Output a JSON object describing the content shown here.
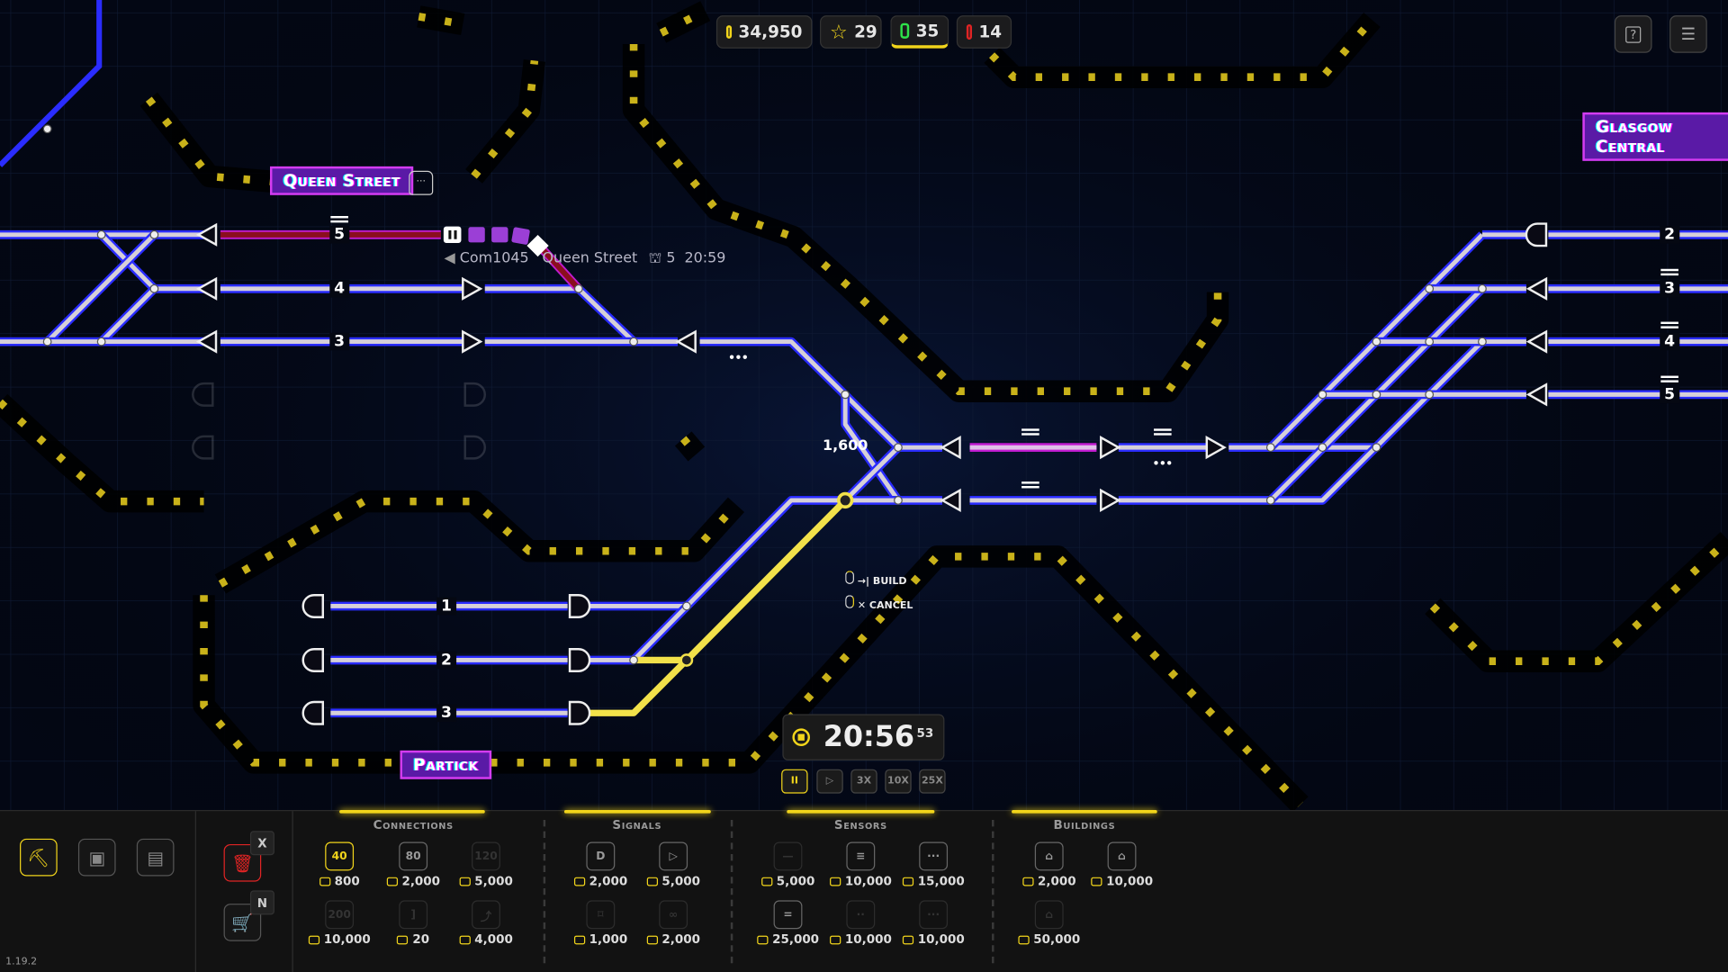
{
  "stats": {
    "money": "34,950",
    "stars": "29",
    "trains_green": "35",
    "trains_red": "14"
  },
  "top_buttons": {
    "help": "?",
    "menu": "☰"
  },
  "stations": {
    "queen_street": "Queen Street",
    "partick": "Partick",
    "glasgow_central": "Glasgow Central"
  },
  "train_info": {
    "name": "Com1045",
    "destination": "Queen Street",
    "platform": "5",
    "time": "20:59"
  },
  "platforms": {
    "queen_street": [
      "5",
      "4",
      "3"
    ],
    "partick": [
      "1",
      "2",
      "3"
    ],
    "glasgow_central": [
      "2",
      "3",
      "4",
      "5"
    ]
  },
  "track_cost_label": "1,600",
  "hints": {
    "build": "BUILD",
    "cancel": "CANCEL"
  },
  "clock": {
    "time": "20:56",
    "seconds": "53"
  },
  "speeds": [
    {
      "label": "II",
      "selected": true
    },
    {
      "label": "▷"
    },
    {
      "label": "3X"
    },
    {
      "label": "10X"
    },
    {
      "label": "25X"
    }
  ],
  "tools": {
    "delete_key": "X",
    "shop_key": "N"
  },
  "version": "1.19.2",
  "colors": {
    "accent": "#f2d51b",
    "station": "#5a1aa6",
    "track_blue": "#2a2cff",
    "danger": "#e02424",
    "money_green": "#2ee24a"
  },
  "categories": [
    {
      "title": "Connections",
      "items": [
        {
          "icon": "track-40",
          "label": "40",
          "price": "800",
          "state": "selected"
        },
        {
          "icon": "track-80",
          "label": "80",
          "price": "2,000",
          "state": "available"
        },
        {
          "icon": "track-120",
          "label": "120",
          "price": "5,000",
          "state": "locked"
        },
        {
          "icon": "track-200",
          "label": "200",
          "price": "10,000",
          "state": "locked"
        },
        {
          "icon": "bumper",
          "label": "]",
          "price": "20",
          "state": "locked"
        },
        {
          "icon": "switch",
          "label": "⤴",
          "price": "4,000",
          "state": "locked"
        }
      ]
    },
    {
      "title": "Signals",
      "items": [
        {
          "icon": "path-signal",
          "label": "D",
          "price": "2,000",
          "state": "available"
        },
        {
          "icon": "block-signal",
          "label": "▷",
          "price": "5,000",
          "state": "available"
        },
        {
          "icon": "chain-signal",
          "label": "⌑",
          "price": "1,000",
          "state": "locked"
        },
        {
          "icon": "infinite-signal",
          "label": "∞",
          "price": "2,000",
          "state": "locked"
        }
      ]
    },
    {
      "title": "Sensors",
      "items": [
        {
          "icon": "sensor-basic",
          "label": "—",
          "price": "5,000",
          "state": "locked"
        },
        {
          "icon": "sensor-platform",
          "label": "≡",
          "price": "10,000",
          "state": "available"
        },
        {
          "icon": "sensor-dots",
          "label": "···",
          "price": "15,000",
          "state": "available"
        },
        {
          "icon": "sensor-double",
          "label": "=",
          "price": "25,000",
          "state": "available"
        },
        {
          "icon": "sensor-pair",
          "label": "··",
          "price": "10,000",
          "state": "locked"
        },
        {
          "icon": "sensor-triple",
          "label": "···",
          "price": "10,000",
          "state": "locked"
        }
      ]
    },
    {
      "title": "Buildings",
      "items": [
        {
          "icon": "station-small",
          "label": "⌂",
          "price": "2,000",
          "state": "available"
        },
        {
          "icon": "station-large",
          "label": "⌂",
          "price": "10,000",
          "state": "available"
        },
        {
          "icon": "station-tower",
          "label": "⌂",
          "price": "50,000",
          "state": "locked"
        }
      ]
    }
  ]
}
